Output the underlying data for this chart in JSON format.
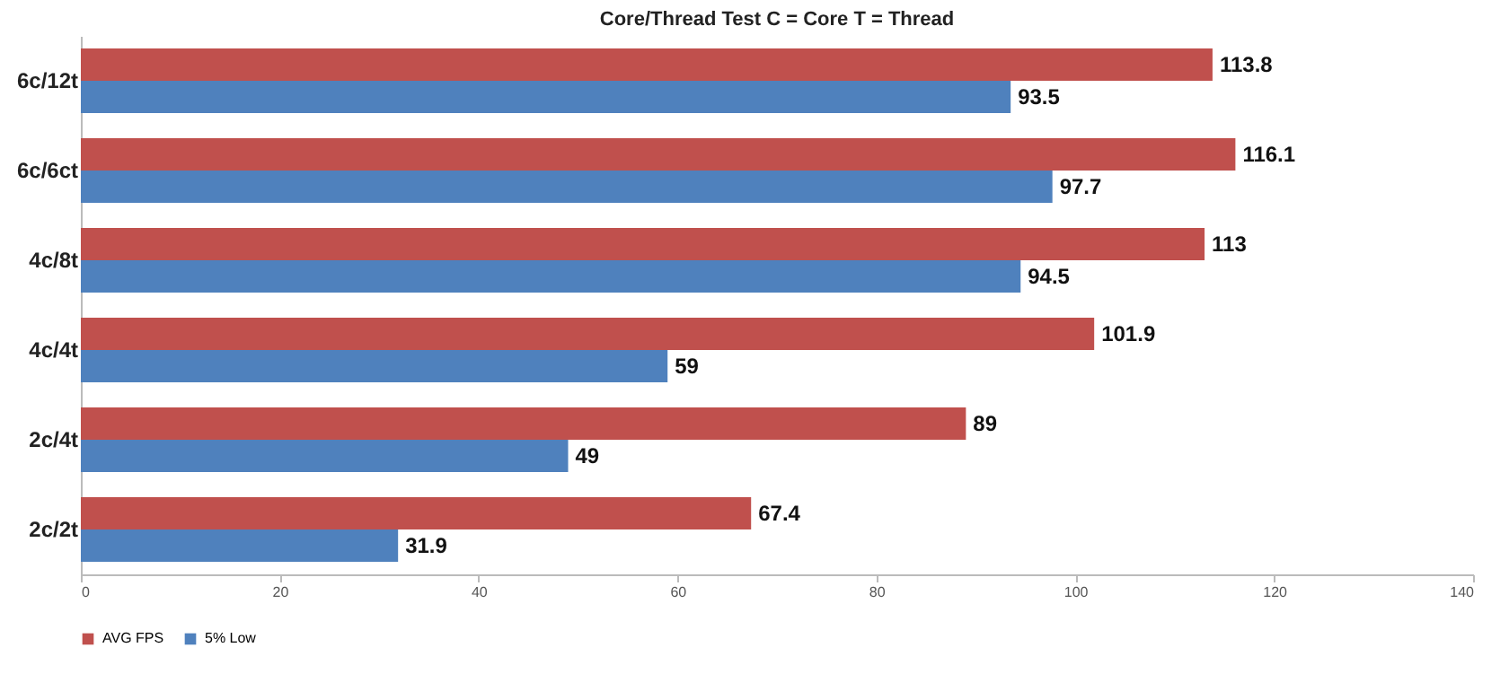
{
  "chart_data": {
    "type": "bar",
    "orientation": "horizontal",
    "title": "Core/Thread Test  C = Core  T = Thread",
    "categories": [
      "6c/12t",
      "6c/6ct",
      "4c/8t",
      "4c/4t",
      "2c/4t",
      "2c/2t"
    ],
    "series": [
      {
        "name": "AVG FPS",
        "color": "#c0504d",
        "values": [
          113.8,
          116.1,
          113,
          101.9,
          89,
          67.4
        ]
      },
      {
        "name": "5% Low",
        "color": "#4f81bd",
        "values": [
          93.5,
          97.7,
          94.5,
          59,
          49,
          31.9
        ]
      }
    ],
    "xlim": [
      0,
      140
    ],
    "xticks": [
      0,
      20,
      40,
      60,
      80,
      100,
      120,
      140
    ],
    "grid": false,
    "legend": "bottom",
    "data_labels": true
  }
}
